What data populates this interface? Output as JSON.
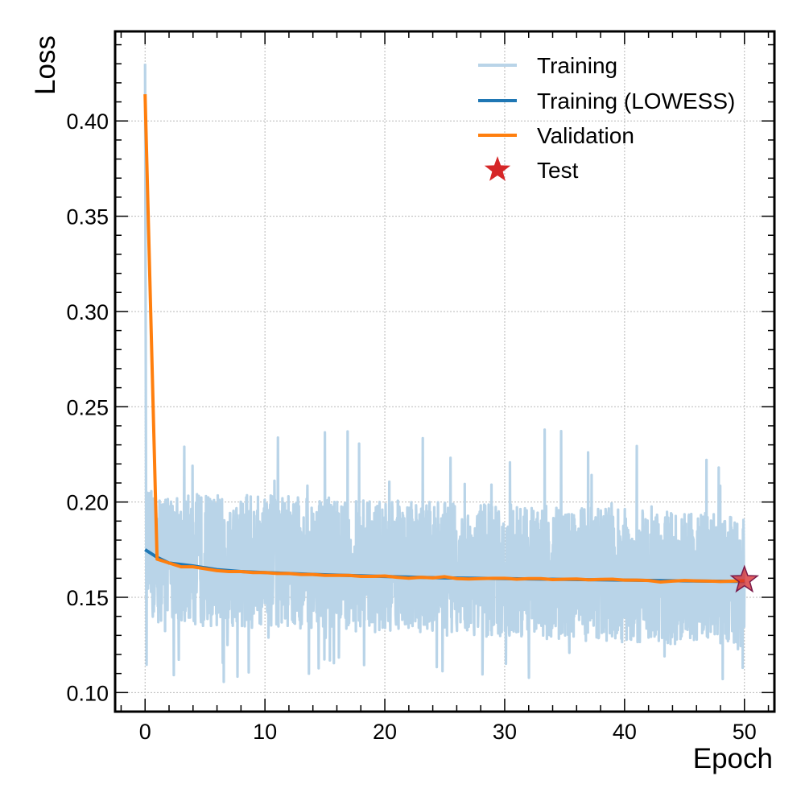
{
  "chart_data": {
    "type": "line",
    "xlabel": "Epoch",
    "ylabel": "Loss",
    "xlim": [
      -2.5,
      52.5
    ],
    "ylim": [
      0.09,
      0.447
    ],
    "xticks": [
      0,
      10,
      20,
      30,
      40,
      50
    ],
    "yticks": [
      0.1,
      0.15,
      0.2,
      0.25,
      0.3,
      0.35,
      0.4
    ],
    "grid": true,
    "legend_position": "top-right",
    "series": [
      {
        "name": "Training",
        "kind": "noisy-band",
        "color": "#b9d4e8",
        "x_range": [
          0,
          50
        ],
        "initial_peak": 0.43,
        "band_upper_typical": 0.205,
        "band_lower_typical": 0.135,
        "max_spike": 0.24,
        "min_dip": 0.105
      },
      {
        "name": "Training (LOWESS)",
        "color": "#1f77b4",
        "x": [
          0,
          1,
          2,
          4,
          6,
          8,
          10,
          15,
          20,
          25,
          30,
          35,
          40,
          45,
          50
        ],
        "y": [
          0.175,
          0.171,
          0.168,
          0.1665,
          0.1645,
          0.1635,
          0.163,
          0.1618,
          0.1609,
          0.1602,
          0.1598,
          0.1594,
          0.159,
          0.1586,
          0.1583
        ]
      },
      {
        "name": "Validation",
        "color": "#ff7f0e",
        "x": [
          0,
          1,
          2,
          3,
          4,
          5,
          6,
          7,
          8,
          9,
          10,
          11,
          12,
          13,
          14,
          15,
          16,
          17,
          18,
          19,
          20,
          21,
          22,
          23,
          24,
          25,
          26,
          27,
          28,
          29,
          30,
          31,
          32,
          33,
          34,
          35,
          36,
          37,
          38,
          39,
          40,
          41,
          42,
          43,
          44,
          45,
          46,
          47,
          48,
          49,
          50
        ],
        "y": [
          0.414,
          0.17,
          0.168,
          0.166,
          0.166,
          0.165,
          0.164,
          0.1635,
          0.1635,
          0.163,
          0.163,
          0.1625,
          0.1625,
          0.162,
          0.162,
          0.1615,
          0.1615,
          0.1615,
          0.161,
          0.161,
          0.1612,
          0.1605,
          0.16,
          0.1605,
          0.1602,
          0.1608,
          0.1598,
          0.1596,
          0.1598,
          0.16,
          0.16,
          0.1595,
          0.1598,
          0.1598,
          0.1593,
          0.1595,
          0.1596,
          0.1592,
          0.1594,
          0.1595,
          0.159,
          0.159,
          0.1588,
          0.158,
          0.1585,
          0.1588,
          0.1586,
          0.1585,
          0.1583,
          0.1585,
          0.1587
        ]
      },
      {
        "name": "Test",
        "kind": "marker",
        "marker": "star",
        "color": "#d62728",
        "x": [
          50
        ],
        "y": [
          0.159
        ]
      }
    ]
  }
}
